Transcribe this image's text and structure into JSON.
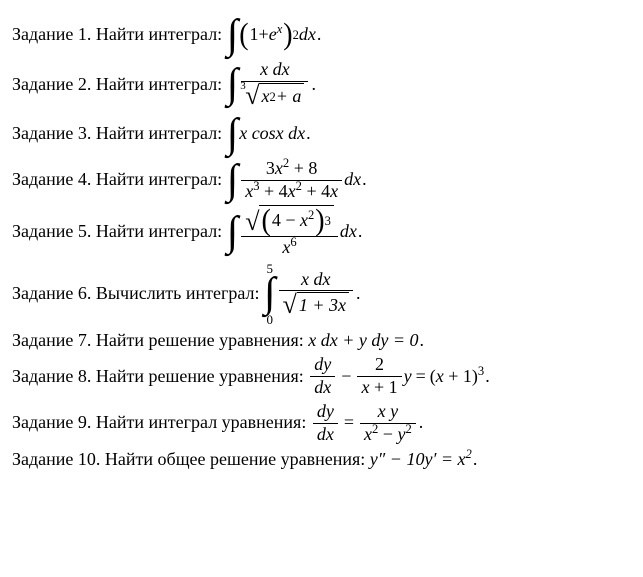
{
  "colors": {
    "text": "#000000",
    "background": "#ffffff"
  },
  "typography": {
    "font_family": "Times New Roman",
    "base_size_pt": 14
  },
  "strings": {
    "task_prefix": "Задание ",
    "find_integral": ". Найти интеграл: ",
    "compute_integral": ". Вычислить интеграл: ",
    "find_solution_eq": ". Найти решение уравнения: ",
    "find_integral_eq": ". Найти интеграл уравнения: ",
    "find_general_solution": ". Найти общее решение уравнения: ",
    "period": "."
  },
  "tasks": [
    {
      "n": "1",
      "label_key": "find_integral"
    },
    {
      "n": "2",
      "label_key": "find_integral"
    },
    {
      "n": "3",
      "label_key": "find_integral"
    },
    {
      "n": "4",
      "label_key": "find_integral"
    },
    {
      "n": "5",
      "label_key": "find_integral"
    },
    {
      "n": "6",
      "label_key": "compute_integral"
    },
    {
      "n": "7",
      "label_key": "find_solution_eq"
    },
    {
      "n": "8",
      "label_key": "find_solution_eq"
    },
    {
      "n": "9",
      "label_key": "find_integral_eq"
    },
    {
      "n": "10",
      "label_key": "find_general_solution"
    }
  ],
  "math": {
    "t1": {
      "integrand_base_left": "1+",
      "integrand_base_e": "e",
      "integrand_base_exp": "x",
      "outer_exp": "2",
      "dx": "dx"
    },
    "t2": {
      "num": "x dx",
      "root_index": "3",
      "radicand_x": "x",
      "radicand_exp": "2",
      "radicand_plus_a": " + a"
    },
    "t3": {
      "integrand": "x cosx dx"
    },
    "t4": {
      "num_a": "3",
      "num_x1": "x",
      "num_e1": "2",
      "num_b": " + 8",
      "den_x1": "x",
      "den_e1": "3",
      "den_p1": " + 4",
      "den_x2": "x",
      "den_e2": "2",
      "den_p2": " + 4",
      "den_x3": "x",
      "dx": "dx"
    },
    "t5": {
      "inner_a": "4 − ",
      "inner_x": "x",
      "inner_e": "2",
      "outer_e": "3",
      "den_x": "x",
      "den_e": "6",
      "dx": "dx"
    },
    "t6": {
      "lim_top": "5",
      "lim_bot": "0",
      "num": "x dx",
      "rad": "1 + 3x"
    },
    "t7": {
      "eq": "x dx + y dy = 0"
    },
    "t8": {
      "dy": "dy",
      "dx": "dx",
      "coef_num": "2",
      "coef_den_x": "x",
      "coef_den_p1": " + 1",
      "y": " y ",
      "rhs_l": "(",
      "rhs_x": "x",
      "rhs_p1": " + 1",
      "rhs_r": ")",
      "rhs_e": "3"
    },
    "t9": {
      "dy": "dy",
      "dx": "dx",
      "num": "x y",
      "den_x1": "x",
      "den_e1": "2",
      "den_m": " − ",
      "den_y": "y",
      "den_e2": "2"
    },
    "t10": {
      "lhs_y2": "y″",
      "minus": " − 10",
      "lhs_y1": "y′",
      "eq": " = ",
      "rhs_x": "x",
      "rhs_e": "2"
    }
  }
}
